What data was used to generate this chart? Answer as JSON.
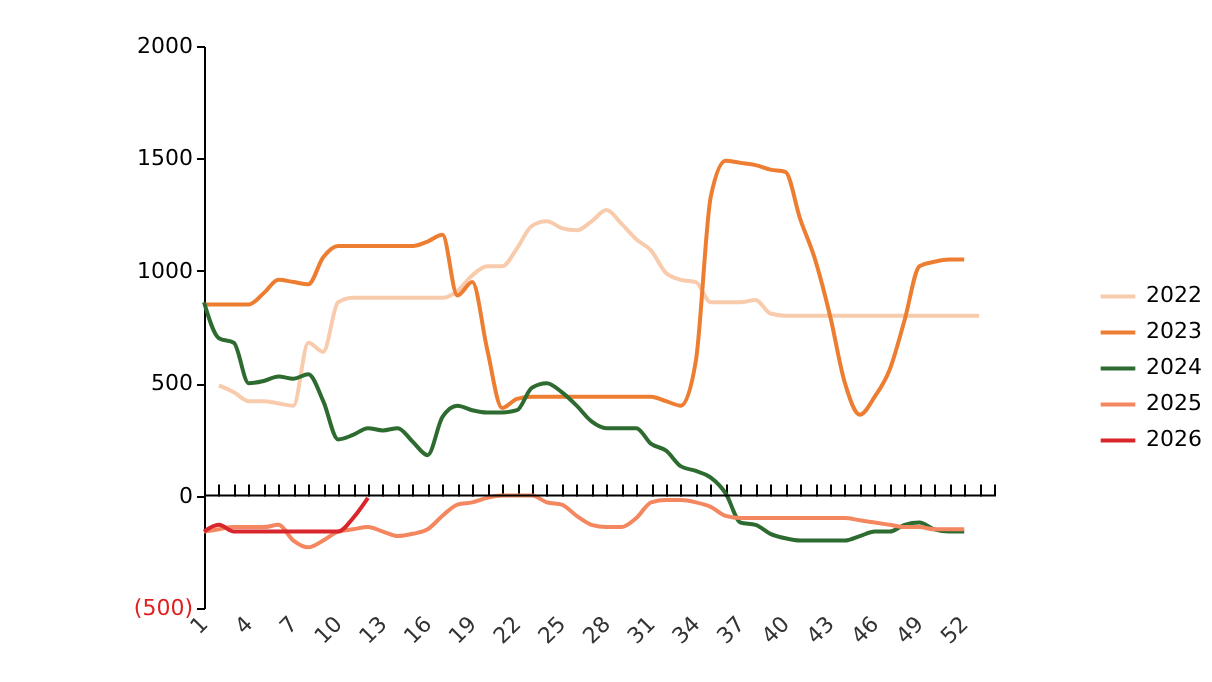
{
  "chart_data": {
    "type": "line",
    "x": [
      1,
      2,
      3,
      4,
      5,
      6,
      7,
      8,
      9,
      10,
      11,
      12,
      13,
      14,
      15,
      16,
      17,
      18,
      19,
      20,
      21,
      22,
      23,
      24,
      25,
      26,
      27,
      28,
      29,
      30,
      31,
      32,
      33,
      34,
      35,
      36,
      37,
      38,
      39,
      40,
      41,
      42,
      43,
      44,
      45,
      46,
      47,
      48,
      49,
      50,
      51,
      52
    ],
    "xlim": [
      1,
      54
    ],
    "xticks": [
      1,
      {
        "value": 2,
        "label": null
      },
      {
        "value": 3,
        "label": null
      },
      4,
      {
        "value": 5,
        "label": null
      },
      {
        "value": 6,
        "label": null
      },
      7,
      {
        "value": 8,
        "label": null
      },
      {
        "value": 9,
        "label": null
      },
      10,
      {
        "value": 11,
        "label": null
      },
      {
        "value": 12,
        "label": null
      },
      13,
      {
        "value": 14,
        "label": null
      },
      {
        "value": 15,
        "label": null
      },
      16,
      {
        "value": 17,
        "label": null
      },
      {
        "value": 18,
        "label": null
      },
      19,
      {
        "value": 20,
        "label": null
      },
      {
        "value": 21,
        "label": null
      },
      22,
      {
        "value": 23,
        "label": null
      },
      {
        "value": 24,
        "label": null
      },
      25,
      {
        "value": 26,
        "label": null
      },
      {
        "value": 27,
        "label": null
      },
      28,
      {
        "value": 29,
        "label": null
      },
      {
        "value": 30,
        "label": null
      },
      31,
      {
        "value": 32,
        "label": null
      },
      {
        "value": 33,
        "label": null
      },
      34,
      {
        "value": 35,
        "label": null
      },
      {
        "value": 36,
        "label": null
      },
      37,
      {
        "value": 38,
        "label": null
      },
      {
        "value": 39,
        "label": null
      },
      40,
      {
        "value": 41,
        "label": null
      },
      {
        "value": 42,
        "label": null
      },
      43,
      {
        "value": 44,
        "label": null
      },
      {
        "value": 45,
        "label": null
      },
      46,
      {
        "value": 47,
        "label": null
      },
      {
        "value": 48,
        "label": null
      },
      49,
      {
        "value": 50,
        "label": null
      },
      {
        "value": 51,
        "label": null
      },
      52,
      {
        "value": 53,
        "label": null
      },
      {
        "value": 54,
        "label": null
      }
    ],
    "ylim": [
      -500,
      2000
    ],
    "yticks": [
      {
        "value": -500,
        "label": "(500)"
      },
      0,
      500,
      1000,
      1500,
      2000
    ],
    "legend": "right",
    "grid": false,
    "ref_lines": [
      {
        "axis": "y",
        "value": 0,
        "color": "#000000"
      }
    ],
    "series": [
      {
        "name": "2022",
        "color": "#f8cbad",
        "x": [
          2,
          3,
          4,
          5,
          6,
          7,
          8,
          9,
          10,
          11,
          12,
          13,
          14,
          15,
          16,
          17,
          18,
          19,
          20,
          21,
          22,
          23,
          24,
          25,
          26,
          27,
          28,
          29,
          30,
          31,
          32,
          33,
          34,
          35,
          36,
          37,
          38,
          39,
          40,
          41,
          42,
          43,
          44,
          45,
          46,
          47,
          48,
          49,
          50,
          51,
          52,
          53
        ],
        "values": [
          490,
          460,
          420,
          420,
          410,
          400,
          680,
          640,
          860,
          880,
          880,
          880,
          880,
          880,
          880,
          880,
          910,
          980,
          1020,
          1020,
          1100,
          1200,
          1220,
          1190,
          1180,
          1220,
          1270,
          1210,
          1140,
          1090,
          990,
          960,
          950,
          860,
          860,
          860,
          870,
          810,
          800,
          800,
          800,
          800,
          800,
          800,
          800,
          800,
          800,
          800,
          800,
          800,
          800,
          800
        ]
      },
      {
        "name": "2023",
        "color": "#ed7d31",
        "values": [
          850,
          850,
          850,
          850,
          900,
          960,
          950,
          940,
          1060,
          1110,
          1110,
          1110,
          1110,
          1110,
          1110,
          1130,
          1160,
          890,
          950,
          650,
          390,
          430,
          440,
          440,
          440,
          440,
          440,
          440,
          440,
          440,
          440,
          420,
          400,
          600,
          1330,
          1490,
          1480,
          1470,
          1450,
          1440,
          1230,
          1050,
          800,
          500,
          360,
          440,
          560,
          780,
          1020,
          1040,
          1050,
          1050
        ]
      },
      {
        "name": "2024",
        "color": "#2e6b30",
        "values": [
          860,
          700,
          680,
          500,
          510,
          530,
          520,
          540,
          420,
          250,
          270,
          300,
          290,
          300,
          240,
          180,
          350,
          400,
          380,
          370,
          370,
          380,
          480,
          500,
          460,
          400,
          330,
          300,
          300,
          300,
          230,
          200,
          130,
          110,
          80,
          10,
          -120,
          -130,
          -170,
          -190,
          -200,
          -200,
          -200,
          -200,
          -180,
          -160,
          -160,
          -130,
          -120,
          -150,
          -160,
          -160
        ]
      },
      {
        "name": "2025",
        "color": "#f4875f",
        "values": [
          -160,
          -150,
          -140,
          -140,
          -140,
          -130,
          -200,
          -230,
          -200,
          -160,
          -150,
          -140,
          -160,
          -180,
          -170,
          -150,
          -90,
          -40,
          -30,
          -10,
          0,
          0,
          0,
          -30,
          -40,
          -90,
          -130,
          -140,
          -140,
          -100,
          -30,
          -20,
          -20,
          -30,
          -50,
          -90,
          -100,
          -100,
          -100,
          -100,
          -100,
          -100,
          -100,
          -100,
          -110,
          -120,
          -130,
          -140,
          -140,
          -150,
          -150,
          -150
        ]
      },
      {
        "name": "2026",
        "color": "#d9262c",
        "x": [
          1,
          2,
          3,
          4,
          5,
          6,
          7,
          8,
          9,
          10,
          11,
          12
        ],
        "values": [
          -160,
          -130,
          -160,
          -160,
          -160,
          -160,
          -160,
          -160,
          -160,
          -160,
          -100,
          -10
        ]
      }
    ]
  }
}
